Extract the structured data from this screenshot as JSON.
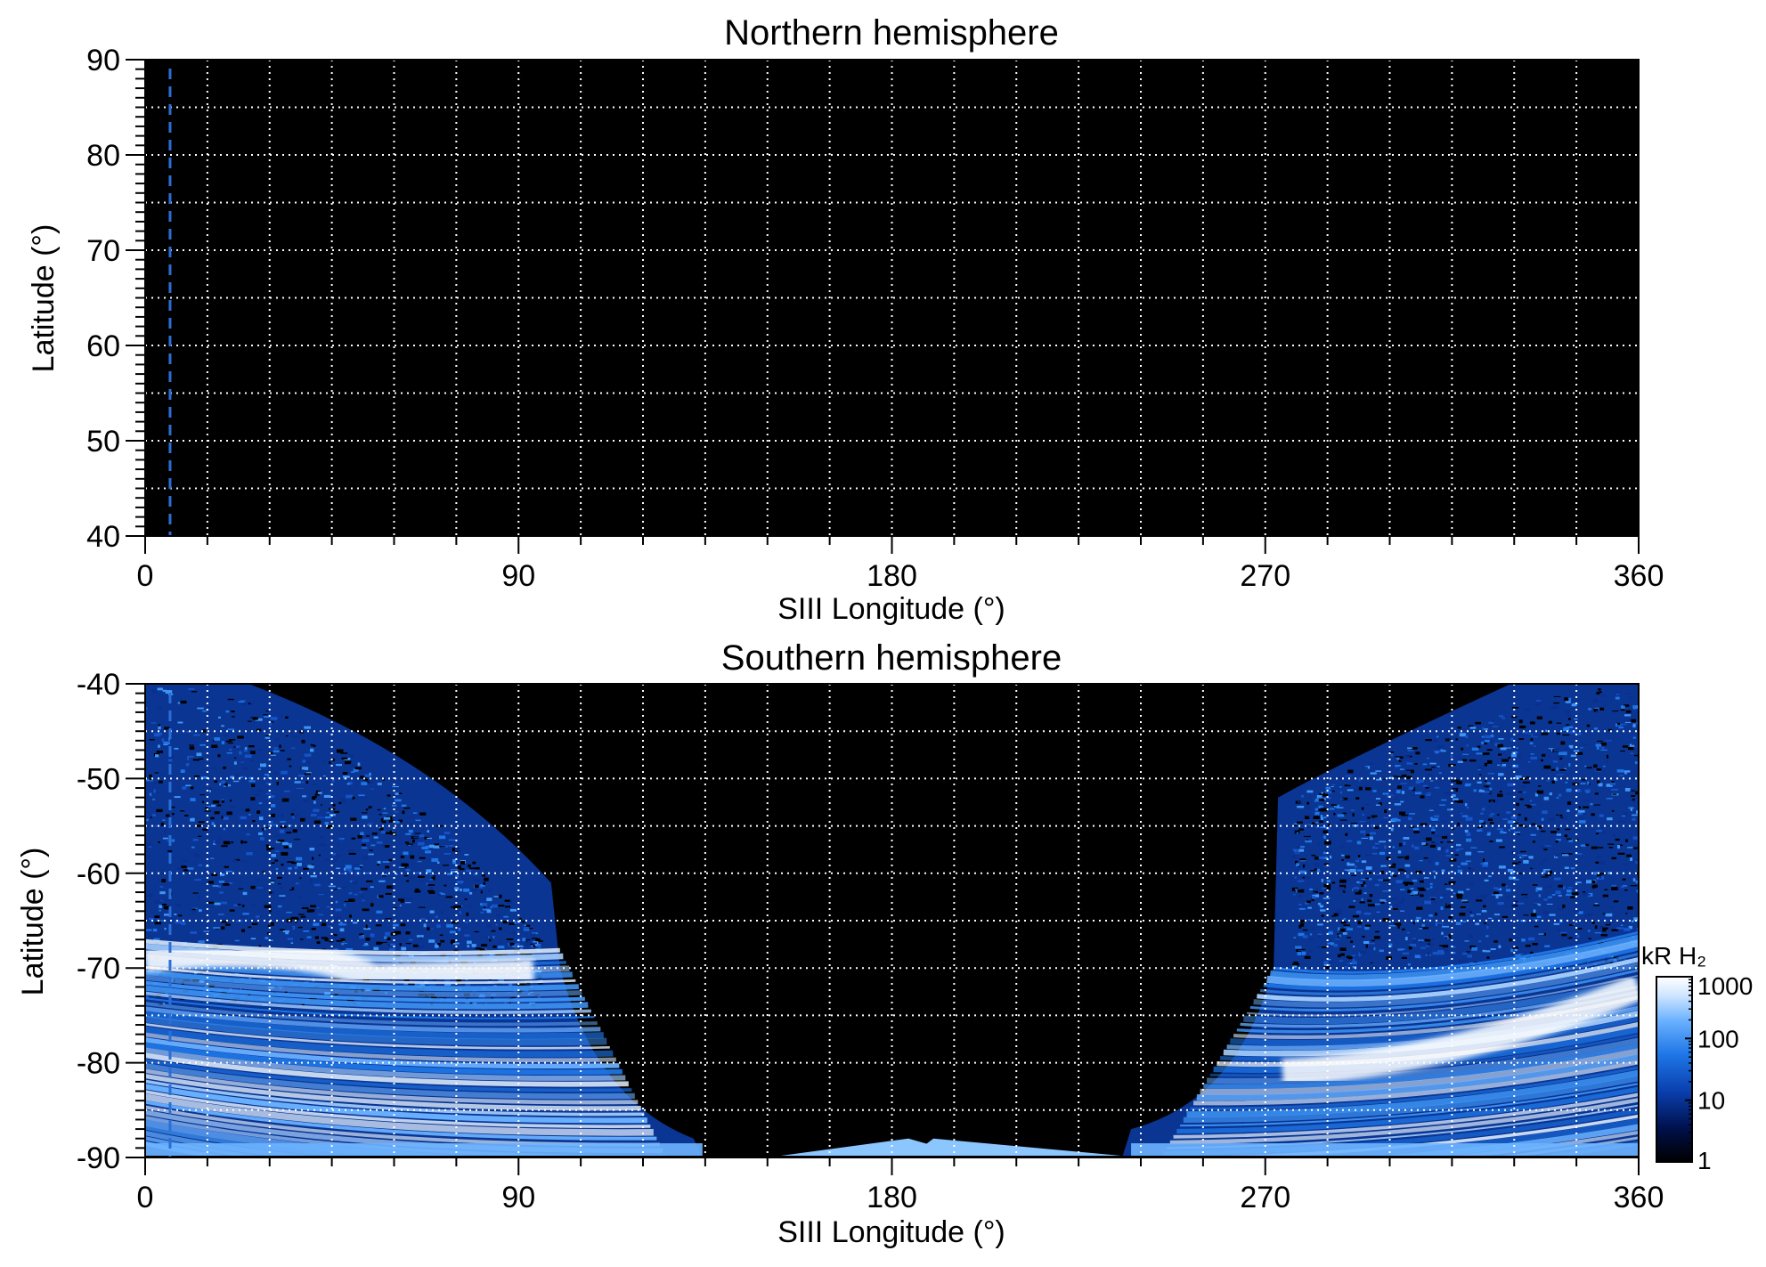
{
  "colors": {
    "background": "#000000",
    "grid": "#ffffff",
    "marker": "#2b6fd6",
    "colormap": [
      "#000000",
      "#00104a",
      "#0a3fae",
      "#1e76e6",
      "#69b0ff",
      "#cfe6ff",
      "#ffffff"
    ]
  },
  "chart_data": [
    {
      "type": "heatmap",
      "title": "Northern hemisphere",
      "xlabel": "SIII Longitude (°)",
      "ylabel": "Latitude (°)",
      "xlim": [
        0,
        360
      ],
      "ylim": [
        40,
        90
      ],
      "xticks": [
        "0",
        "90",
        "180",
        "270",
        "360"
      ],
      "xtick_values": [
        0,
        90,
        180,
        270,
        360
      ],
      "yticks": [
        "90",
        "80",
        "70",
        "60",
        "50",
        "40"
      ],
      "ytick_values": [
        90,
        80,
        70,
        60,
        50,
        40
      ],
      "grid": true,
      "grid_dx": 15,
      "grid_dy": 5,
      "marker_longitude": 6,
      "emission_regions": []
    },
    {
      "type": "heatmap",
      "title": "Southern hemisphere",
      "xlabel": "SIII Longitude (°)",
      "ylabel": "Latitude (°)",
      "xlim": [
        0,
        360
      ],
      "ylim": [
        -90,
        -40
      ],
      "xticks": [
        "0",
        "90",
        "180",
        "270",
        "360"
      ],
      "xtick_values": [
        0,
        90,
        180,
        270,
        360
      ],
      "yticks": [
        "-40",
        "-50",
        "-60",
        "-70",
        "-80",
        "-90"
      ],
      "ytick_values": [
        -40,
        -50,
        -60,
        -70,
        -80,
        -90
      ],
      "grid": true,
      "grid_dx": 15,
      "grid_dy": 5,
      "marker_longitude": 6,
      "emission_regions": [
        {
          "lon": [
            0,
            100
          ],
          "lat": [
            -90,
            -40
          ],
          "intensity_range_kR": [
            1,
            1000
          ],
          "main_oval_lat": -70
        },
        {
          "lon": [
            272,
            360
          ],
          "lat": [
            -90,
            -40
          ],
          "intensity_range_kR": [
            1,
            1000
          ],
          "main_oval_lat": -82
        }
      ],
      "colorbar": {
        "title": "kR H₂",
        "scale": "log",
        "range": [
          1,
          1000
        ],
        "ticks": [
          "1000",
          "100",
          "10",
          "1"
        ],
        "tick_values": [
          1000,
          100,
          10,
          1
        ]
      }
    }
  ]
}
